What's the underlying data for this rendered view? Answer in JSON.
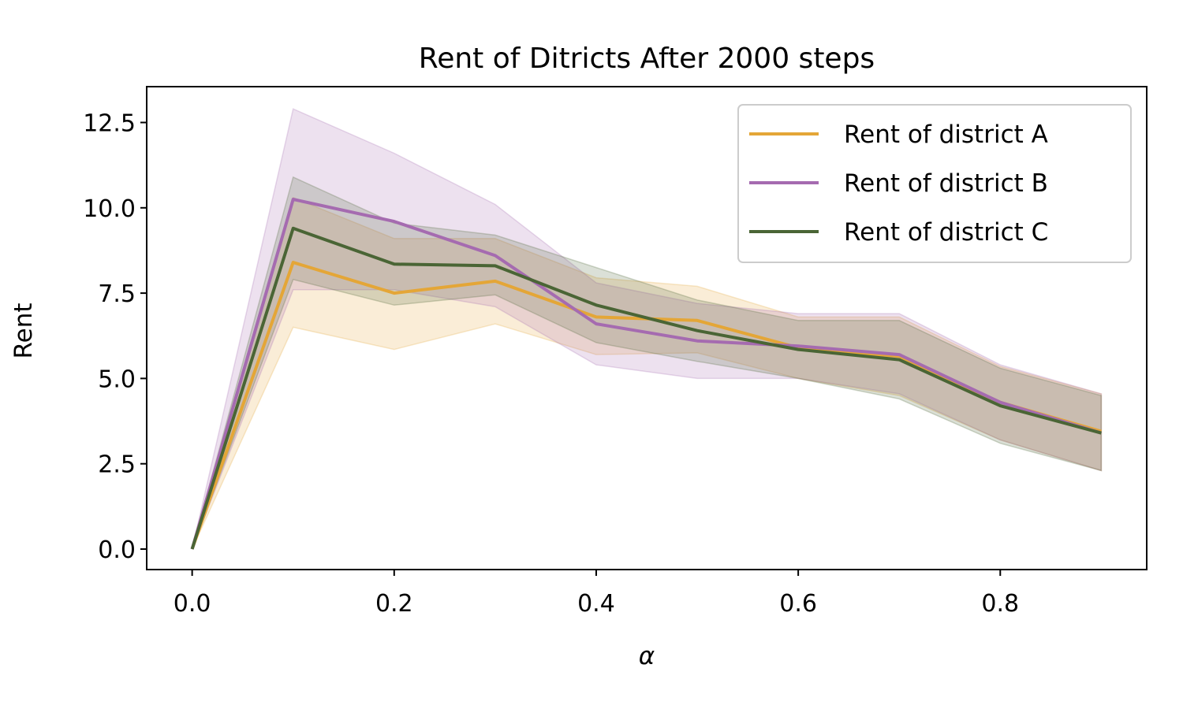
{
  "chart_data": {
    "type": "line",
    "title": "Rent of Ditricts After 2000 steps",
    "xlabel": "α",
    "ylabel": "Rent",
    "x": [
      0.0,
      0.1,
      0.2,
      0.3,
      0.4,
      0.5,
      0.6,
      0.7,
      0.8,
      0.9
    ],
    "xlim": [
      -0.045,
      0.945
    ],
    "ylim": [
      -0.6,
      13.55
    ],
    "xticks": [
      "0.0",
      "0.2",
      "0.4",
      "0.6",
      "0.8"
    ],
    "xtick_values": [
      0.0,
      0.2,
      0.4,
      0.6,
      0.8
    ],
    "yticks": [
      "0.0",
      "2.5",
      "5.0",
      "7.5",
      "10.0",
      "12.5"
    ],
    "ytick_values": [
      0.0,
      2.5,
      5.0,
      7.5,
      10.0,
      12.5
    ],
    "grid": false,
    "legend_position": "top-right",
    "series": [
      {
        "name": "Rent of district A",
        "color": "#E4A637",
        "values": [
          0.0,
          8.4,
          7.5,
          7.85,
          6.8,
          6.7,
          5.9,
          5.65,
          4.3,
          3.45
        ],
        "lower": [
          0.0,
          6.5,
          5.85,
          6.6,
          5.7,
          5.75,
          5.0,
          4.5,
          3.2,
          2.3
        ],
        "upper": [
          0.0,
          10.3,
          9.1,
          9.1,
          7.95,
          7.7,
          6.8,
          6.8,
          5.35,
          4.55
        ]
      },
      {
        "name": "Rent of district B",
        "color": "#A56BB0",
        "values": [
          0.0,
          10.25,
          9.6,
          8.6,
          6.6,
          6.1,
          5.95,
          5.7,
          4.3,
          3.4
        ],
        "lower": [
          0.0,
          7.6,
          7.6,
          7.1,
          5.4,
          5.0,
          5.0,
          4.55,
          3.2,
          2.3
        ],
        "upper": [
          0.0,
          12.9,
          11.6,
          10.1,
          7.8,
          7.2,
          6.9,
          6.9,
          5.4,
          4.55
        ]
      },
      {
        "name": "Rent of district C",
        "color": "#4A6535",
        "values": [
          0.0,
          9.4,
          8.35,
          8.3,
          7.15,
          6.4,
          5.85,
          5.55,
          4.2,
          3.4
        ],
        "lower": [
          0.0,
          7.9,
          7.15,
          7.45,
          6.05,
          5.5,
          5.0,
          4.4,
          3.1,
          2.3
        ],
        "upper": [
          0.0,
          10.9,
          9.55,
          9.2,
          8.25,
          7.3,
          6.7,
          6.7,
          5.3,
          4.5
        ]
      }
    ]
  }
}
